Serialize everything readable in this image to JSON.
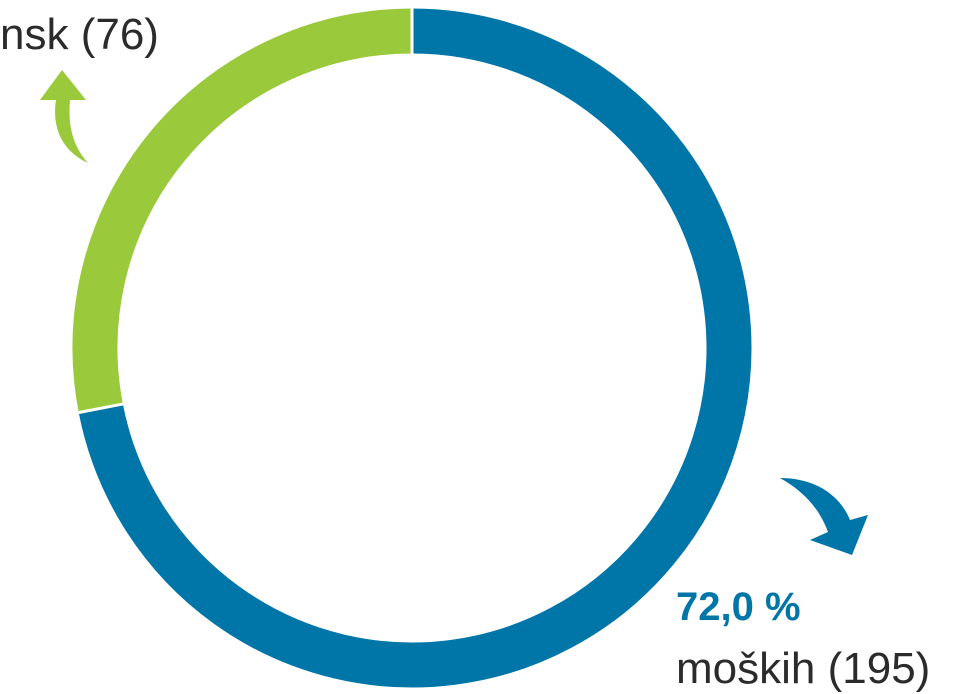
{
  "chart_data": {
    "type": "donut",
    "series": [
      {
        "name": "moških",
        "value": 195,
        "color": "#0075a8",
        "value_label": "moških (195)"
      },
      {
        "name": "žensk",
        "value": 76,
        "color": "#9bc93c",
        "value_label": "nsk (76)"
      }
    ],
    "percent_label": "72,0 %"
  }
}
